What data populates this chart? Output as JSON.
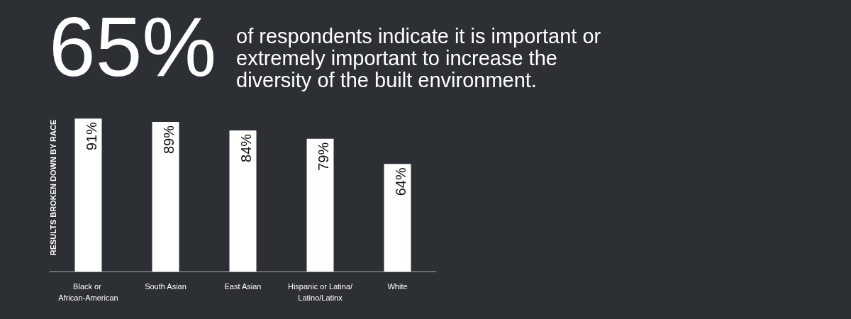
{
  "chart_data": {
    "type": "bar",
    "title": "65%",
    "subtitle": "of respondents indicate it is important or extremely important to increase the diversity of the built environment.",
    "ylabel": "RESULTS BROKEN DOWN BY RACE",
    "categories": [
      "Black or African-American",
      "South Asian",
      "East Asian",
      "Hispanic or Latina/Latino/Latinx",
      "White"
    ],
    "values": [
      91,
      89,
      84,
      79,
      64
    ],
    "value_labels": [
      "91%",
      "89%",
      "84%",
      "79%",
      "64%"
    ],
    "color": "#ffffff",
    "grid": false
  }
}
